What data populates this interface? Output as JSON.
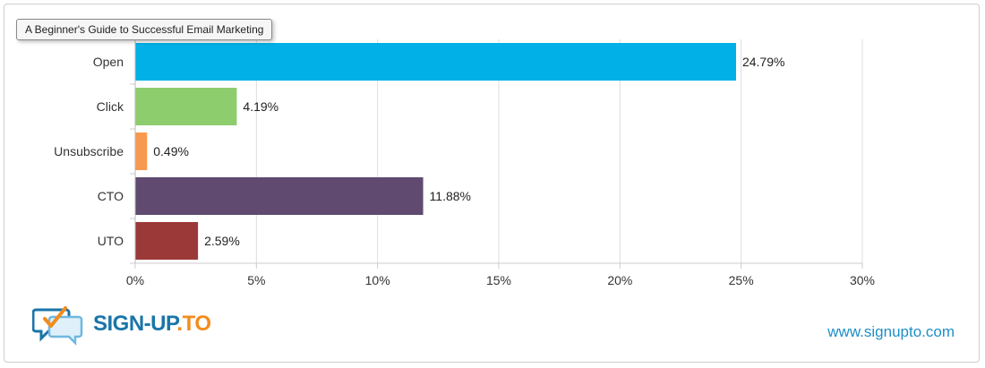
{
  "tooltip": {
    "text": "A Beginner's Guide to Successful Email Marketing"
  },
  "chart_data": {
    "type": "bar",
    "orientation": "horizontal",
    "categories": [
      "Open",
      "Click",
      "Unsubscribe",
      "CTO",
      "UTO"
    ],
    "values": [
      24.79,
      4.19,
      0.49,
      11.88,
      2.59
    ],
    "data_labels": [
      "24.79%",
      "4.19%",
      "0.49%",
      "11.88%",
      "2.59%"
    ],
    "colors": [
      "#00b0e6",
      "#8ecd6e",
      "#f9994d",
      "#604a70",
      "#9b3838"
    ],
    "xlim": [
      0,
      30
    ],
    "x_ticks": [
      0,
      5,
      10,
      15,
      20,
      25,
      30
    ],
    "x_tick_labels": [
      "0%",
      "5%",
      "10%",
      "15%",
      "20%",
      "25%",
      "30%"
    ],
    "grid": true,
    "title": "",
    "xlabel": "",
    "ylabel": ""
  },
  "footer": {
    "logo_text_main": "SIGN-UP",
    "logo_text_accent": ".TO",
    "website": "www.signupto.com",
    "logo_icon": "chat-bubble-checkmark-icon"
  },
  "colors": {
    "brand_blue": "#1a75a8",
    "brand_orange": "#f28c1e",
    "link_blue": "#1f8fc6"
  }
}
